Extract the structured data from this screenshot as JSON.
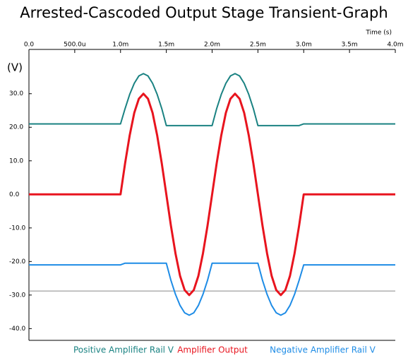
{
  "chart_data": {
    "type": "line",
    "title": "Arrested-Cascoded Output Stage Transient-Graph",
    "x_label": "Time  (s)",
    "y_label": "(V)",
    "xlim": [
      0,
      0.004
    ],
    "ylim": [
      -43.5,
      43.2
    ],
    "xticks": [
      {
        "value": 0,
        "label": "0.0"
      },
      {
        "value": 0.0005,
        "label": "500.0u"
      },
      {
        "value": 0.001,
        "label": "1.0m"
      },
      {
        "value": 0.0015,
        "label": "1.5m"
      },
      {
        "value": 0.002,
        "label": "2.0m"
      },
      {
        "value": 0.0025,
        "label": "2.5m"
      },
      {
        "value": 0.003,
        "label": "3.0m"
      },
      {
        "value": 0.0035,
        "label": "3.5m"
      },
      {
        "value": 0.004,
        "label": "4.0m"
      }
    ],
    "yticks": [
      {
        "value": 30,
        "label": "30.0"
      },
      {
        "value": 20,
        "label": "20.0"
      },
      {
        "value": 10,
        "label": "10.0"
      },
      {
        "value": 0,
        "label": "0.0"
      },
      {
        "value": -10,
        "label": "-10.0"
      },
      {
        "value": -20,
        "label": "-20.0"
      },
      {
        "value": -30,
        "label": "-30.0"
      },
      {
        "value": -40,
        "label": "-40.0"
      }
    ],
    "reference_line": -28.8,
    "legend": "bottom",
    "x": [
      0,
      0.001,
      0.00105,
      0.0011,
      0.00115,
      0.0012,
      0.00125,
      0.0013,
      0.00135,
      0.0014,
      0.00145,
      0.0015,
      0.00155,
      0.0016,
      0.00165,
      0.0017,
      0.00175,
      0.0018,
      0.00185,
      0.0019,
      0.00195,
      0.002,
      0.00205,
      0.0021,
      0.00215,
      0.0022,
      0.00225,
      0.0023,
      0.00235,
      0.0024,
      0.00245,
      0.0025,
      0.00255,
      0.0026,
      0.00265,
      0.0027,
      0.00275,
      0.0028,
      0.00285,
      0.0029,
      0.00295,
      0.003,
      0.004
    ],
    "series": [
      {
        "name": "Positive Amplifier Rail V",
        "color": "#1a8282",
        "values": [
          21,
          21,
          25.6,
          29.8,
          33.1,
          35.3,
          36,
          35.3,
          33.1,
          29.8,
          25.6,
          20.5,
          20.5,
          20.5,
          20.5,
          20.5,
          20.5,
          20.5,
          20.5,
          20.5,
          20.5,
          20.5,
          25.6,
          29.8,
          33.1,
          35.3,
          36,
          35.3,
          33.1,
          29.8,
          25.6,
          20.5,
          20.5,
          20.5,
          20.5,
          20.5,
          20.5,
          20.5,
          20.5,
          20.5,
          20.5,
          21,
          21
        ]
      },
      {
        "name": "Amplifier Output",
        "color": "#e8141e",
        "values": [
          0,
          0,
          9.3,
          17.6,
          24.3,
          28.5,
          30,
          28.5,
          24.3,
          17.6,
          9.3,
          0,
          -9.3,
          -17.6,
          -24.3,
          -28.5,
          -30,
          -28.5,
          -24.3,
          -17.6,
          -9.3,
          0,
          9.3,
          17.6,
          24.3,
          28.5,
          30,
          28.5,
          24.3,
          17.6,
          9.3,
          0,
          -9.3,
          -17.6,
          -24.3,
          -28.5,
          -30,
          -28.5,
          -24.3,
          -17.6,
          -9.3,
          0,
          0
        ]
      },
      {
        "name": "Negative Amplifier Rail V",
        "color": "#1e8ce6",
        "values": [
          -21,
          -21,
          -20.5,
          -20.5,
          -20.5,
          -20.5,
          -20.5,
          -20.5,
          -20.5,
          -20.5,
          -20.5,
          -20.5,
          -25.6,
          -29.8,
          -33.1,
          -35.3,
          -36,
          -35.3,
          -33.1,
          -29.8,
          -25.6,
          -20.5,
          -20.5,
          -20.5,
          -20.5,
          -20.5,
          -20.5,
          -20.5,
          -20.5,
          -20.5,
          -20.5,
          -20.5,
          -25.6,
          -29.8,
          -33.1,
          -35.3,
          -36,
          -35.3,
          -33.1,
          -29.8,
          -25.6,
          -21,
          -21
        ]
      }
    ]
  }
}
